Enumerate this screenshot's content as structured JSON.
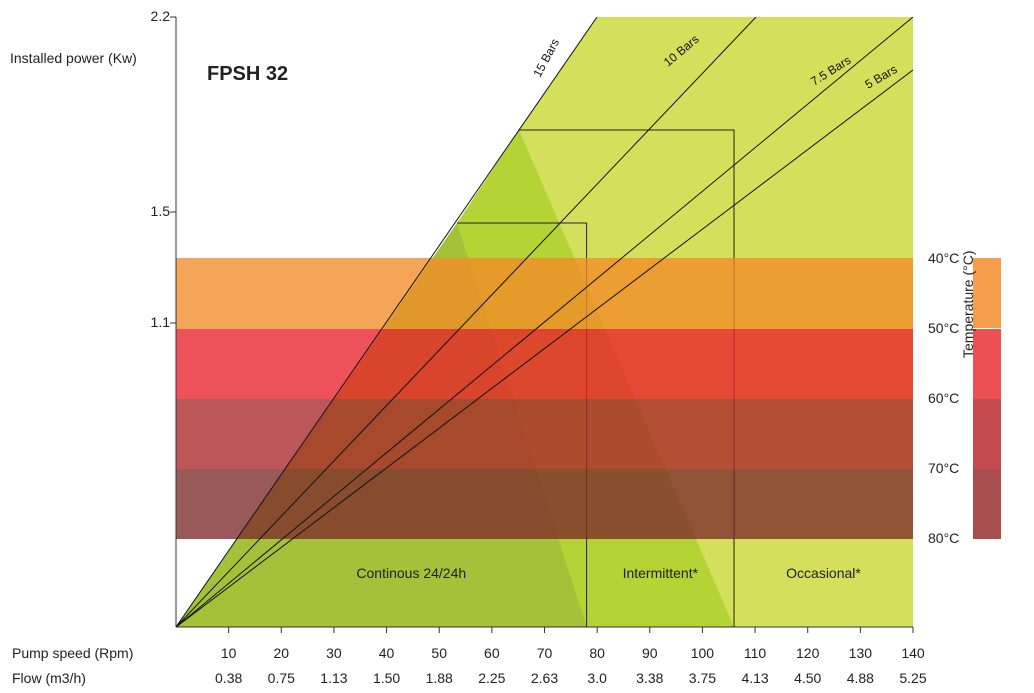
{
  "chart_data": {
    "type": "area",
    "title": "FPSH 32",
    "ylabel": "Installed power (Kw)",
    "y_ticks": [
      "2.2",
      "1.5",
      "1.1"
    ],
    "x_rows": [
      {
        "label": "Pump speed (Rpm)",
        "ticks": [
          "10",
          "20",
          "30",
          "40",
          "50",
          "60",
          "70",
          "80",
          "90",
          "100",
          "110",
          "120",
          "130",
          "140"
        ]
      },
      {
        "label": "Flow (m3/h)",
        "ticks": [
          "0.38",
          "0.75",
          "1.13",
          "1.50",
          "1.88",
          "2.25",
          "2.63",
          "3.0",
          "3.38",
          "3.75",
          "4.13",
          "4.50",
          "4.88",
          "5.25"
        ]
      }
    ],
    "xlim": [
      0,
      140
    ],
    "pressure_lines": [
      {
        "name": "15 Bars",
        "rpm_at_max": 80
      },
      {
        "name": "10 Bars",
        "rpm_at_max": 110
      },
      {
        "name": "7.5 Bars",
        "rpm_at_max": 140
      },
      {
        "name": "5 Bars",
        "rpm_at_max": 140
      }
    ],
    "duty_zones": [
      {
        "name": "Continous 24/24h",
        "rpm_end": 78,
        "color": "#a3c23a"
      },
      {
        "name": "Intermittent*",
        "rpm_end": 106,
        "color": "#b4d335"
      },
      {
        "name": "Occasional*",
        "rpm_end": 140,
        "color": "#d4e05b"
      }
    ],
    "temperature_bands": [
      {
        "label": "40°C",
        "color": "#f49e4c"
      },
      {
        "label": "50°C",
        "color": "#ec5054"
      },
      {
        "label": "60°C",
        "color": "#c34b4d"
      },
      {
        "label": "70°C",
        "color": "#a84e4f"
      },
      {
        "label": "80°C",
        "color": ""
      }
    ],
    "legend_title": "Temperature (°C)",
    "grid": false,
    "legend_position": "right"
  }
}
